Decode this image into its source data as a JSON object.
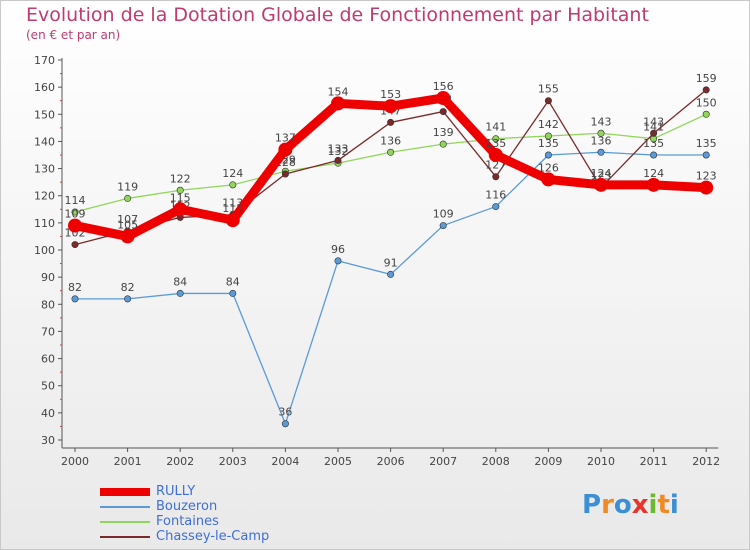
{
  "page": {
    "title": "Evolution de la Dotation Globale de Fonctionnement par Habitant",
    "subtitle": "(en € et par an)",
    "brand": "Proxiti"
  },
  "brand_letters": [
    {
      "ch": "P",
      "color": "#3a8fd6"
    },
    {
      "ch": "r",
      "color": "#f08a24"
    },
    {
      "ch": "o",
      "color": "#3a8fd6"
    },
    {
      "ch": "x",
      "color": "#e8342a"
    },
    {
      "ch": "i",
      "color": "#6aba2c"
    },
    {
      "ch": "t",
      "color": "#f08a24"
    },
    {
      "ch": "i",
      "color": "#3a8fd6"
    }
  ],
  "chart_data": {
    "type": "line",
    "title": "Evolution de la Dotation Globale de Fonctionnement par Habitant",
    "subtitle": "(en € et par an)",
    "xlabel": "",
    "ylabel": "",
    "x": [
      "2000",
      "2001",
      "2002",
      "2003",
      "2004",
      "2005",
      "2006",
      "2007",
      "2008",
      "2009",
      "2010",
      "2011",
      "2012"
    ],
    "ylim": [
      30,
      170
    ],
    "yticks": [
      30,
      40,
      50,
      60,
      70,
      80,
      90,
      100,
      110,
      120,
      130,
      140,
      150,
      160,
      170
    ],
    "grid": false,
    "legend_position": "bottom-left",
    "series": [
      {
        "name": "RULLY",
        "color": "#ee0000",
        "values": [
          109,
          105,
          115,
          111,
          137,
          154,
          153,
          156,
          135,
          126,
          124,
          124,
          123
        ]
      },
      {
        "name": "Bouzeron",
        "color": "#5a9ad6",
        "values": [
          82,
          82,
          84,
          84,
          36,
          96,
          91,
          109,
          116,
          135,
          136,
          135,
          135
        ]
      },
      {
        "name": "Fontaines",
        "color": "#8fd65a",
        "values": [
          114,
          119,
          122,
          124,
          129,
          132,
          136,
          139,
          141,
          142,
          143,
          141,
          150
        ]
      },
      {
        "name": "Chassey-le-Camp",
        "color": "#7a2a2a",
        "values": [
          102,
          107,
          112,
          113,
          128,
          133,
          147,
          151,
          127,
          155,
          123,
          143,
          159
        ]
      }
    ]
  }
}
